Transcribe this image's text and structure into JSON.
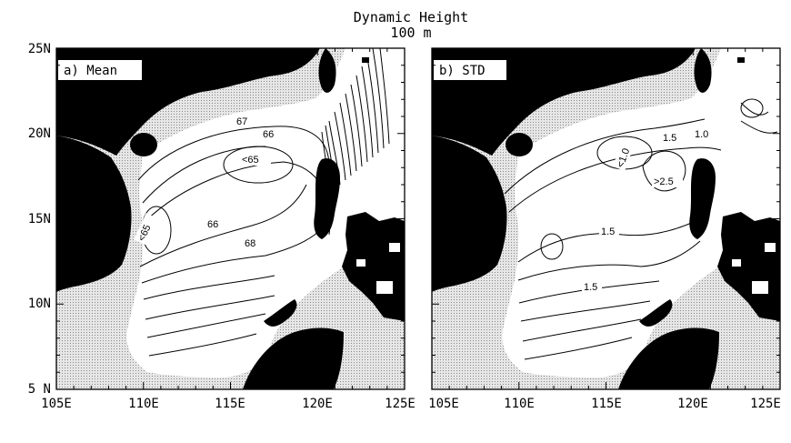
{
  "title": "Dynamic Height",
  "subtitle": "100 m",
  "panels": [
    {
      "label": "a) Mean",
      "x_ticks": [
        "105E",
        "110E",
        "115E",
        "120E",
        "125E"
      ],
      "y_ticks": [
        "25N",
        "20N",
        "15N",
        "10N",
        "5 N"
      ],
      "contour_labels": [
        "67",
        "66",
        "<65",
        "66",
        "<65",
        "68"
      ]
    },
    {
      "label": "b) STD",
      "x_ticks": [
        "105E",
        "110E",
        "115E",
        "120E",
        "125E"
      ],
      "contour_labels": [
        "1.0",
        "1.5",
        "<1.0",
        ">2.5",
        "1.5",
        "1.5"
      ]
    }
  ],
  "colors": {
    "land": "#000000",
    "shallow_shelf": "#c8c8c8",
    "ocean": "#ffffff"
  }
}
